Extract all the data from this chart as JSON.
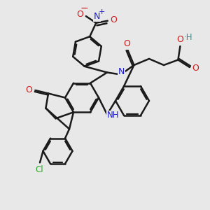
{
  "bg_color": "#e8e8e8",
  "bond_color": "#1a1a1a",
  "bond_width": 1.8,
  "dbo": 0.07,
  "atom_colors": {
    "N": "#1a1acc",
    "O": "#cc1a1a",
    "Cl": "#22aa22",
    "H": "#4a8888",
    "C": "#1a1a1a"
  }
}
